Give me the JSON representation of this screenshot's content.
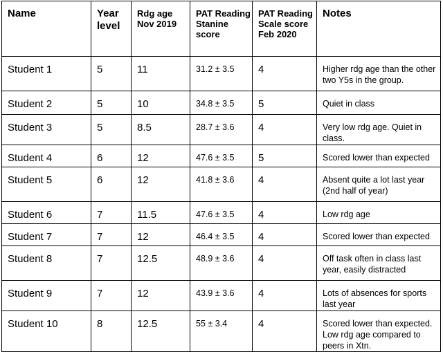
{
  "headers": [
    "Name",
    "Year level",
    "Rdg age Nov 2019",
    "PAT Reading Stanine score",
    "PAT Reading Scale score Feb 2020",
    "Notes"
  ],
  "rows": [
    {
      "name": "Student 1",
      "year": "5",
      "rdg_age": "11",
      "stanine": "31.2 ± 3.5",
      "scale": "4",
      "notes": "Higher rdg age than the other two Y5s in the group."
    },
    {
      "name": "Student 2",
      "year": "5",
      "rdg_age": "10",
      "stanine": "34.8 ± 3.5",
      "scale": "5",
      "notes": "Quiet in class"
    },
    {
      "name": "Student 3",
      "year": "5",
      "rdg_age": "8.5",
      "stanine": "28.7 ± 3.6",
      "scale": "4",
      "notes": "Very low rdg age. Quiet in class."
    },
    {
      "name": "Student 4",
      "year": "6",
      "rdg_age": "12",
      "stanine": "47.6 ± 3.5",
      "scale": "5",
      "notes": "Scored lower than expected"
    },
    {
      "name": "Student 5",
      "year": "6",
      "rdg_age": "12",
      "stanine": "41.8 ± 3.6",
      "scale": "4",
      "notes": "Absent quite a lot last year (2nd half of year)"
    },
    {
      "name": "Student 6",
      "year": "7",
      "rdg_age": "11.5",
      "stanine": "47.6 ± 3.5",
      "scale": "4",
      "notes": "Low rdg age"
    },
    {
      "name": "Student 7",
      "year": "7",
      "rdg_age": "12",
      "stanine": "46.4 ± 3.5",
      "scale": "4",
      "notes": "Scored lower than expected"
    },
    {
      "name": "Student 8",
      "year": "7",
      "rdg_age": "12.5",
      "stanine": "48.9 ± 3.6",
      "scale": "4",
      "notes": "Off task often in class last year, easily distracted"
    },
    {
      "name": "Student 9",
      "year": "7",
      "rdg_age": "12",
      "stanine": "43.9 ± 3.6",
      "scale": "4",
      "notes": "Lots of absences for sports last year"
    },
    {
      "name": "Student 10",
      "year": "8",
      "rdg_age": "12.5",
      "stanine": "55 ± 3.4",
      "scale": "4",
      "notes": "Scored lower than expected. Low rdg age compared to peers in Xtn."
    }
  ]
}
